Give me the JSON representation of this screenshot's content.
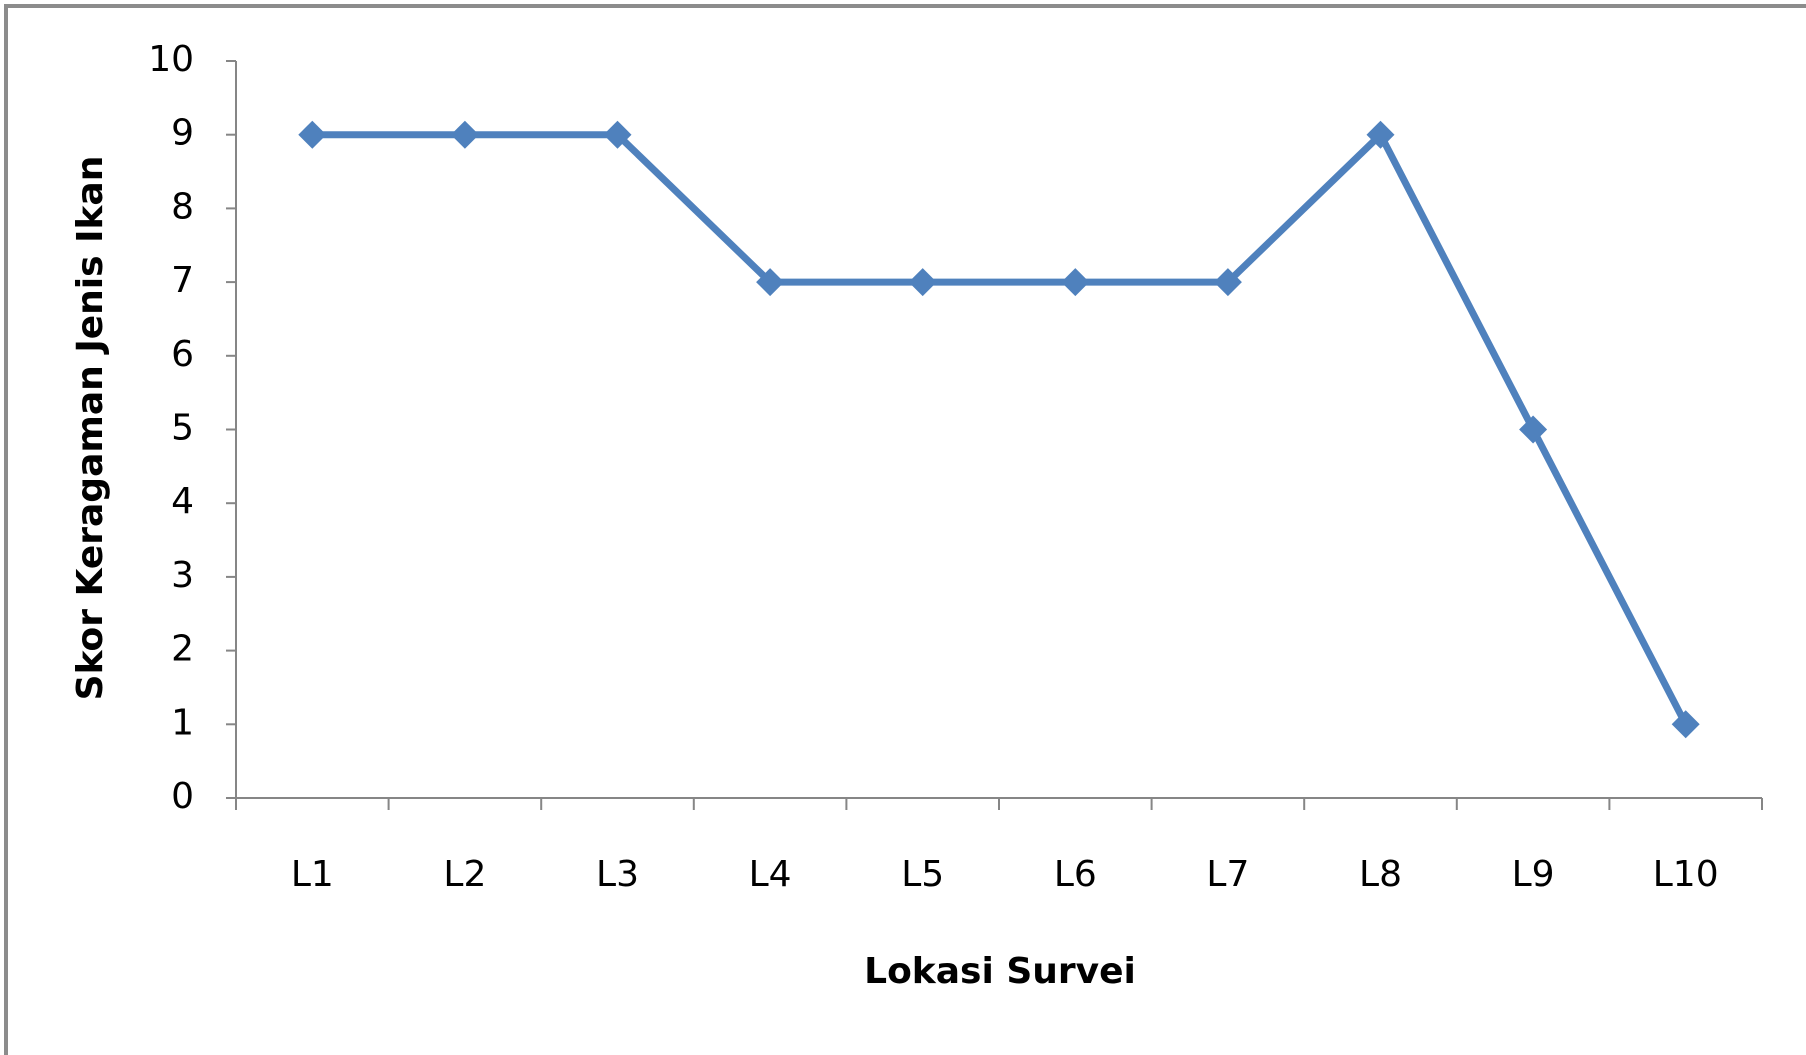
{
  "chart_data": {
    "type": "line",
    "categories": [
      "L1",
      "L2",
      "L3",
      "L4",
      "L5",
      "L6",
      "L7",
      "L8",
      "L9",
      "L10"
    ],
    "values": [
      9,
      9,
      9,
      7,
      7,
      7,
      7,
      9,
      5,
      1
    ],
    "color": "#4f81bd",
    "x_label": "Lokasi Survei",
    "y_label": "Skor Keragaman Jenis Ikan",
    "ylim": [
      0,
      10
    ],
    "yticks": [
      0,
      1,
      2,
      3,
      4,
      5,
      6,
      7,
      8,
      9,
      10
    ],
    "grid": false
  }
}
